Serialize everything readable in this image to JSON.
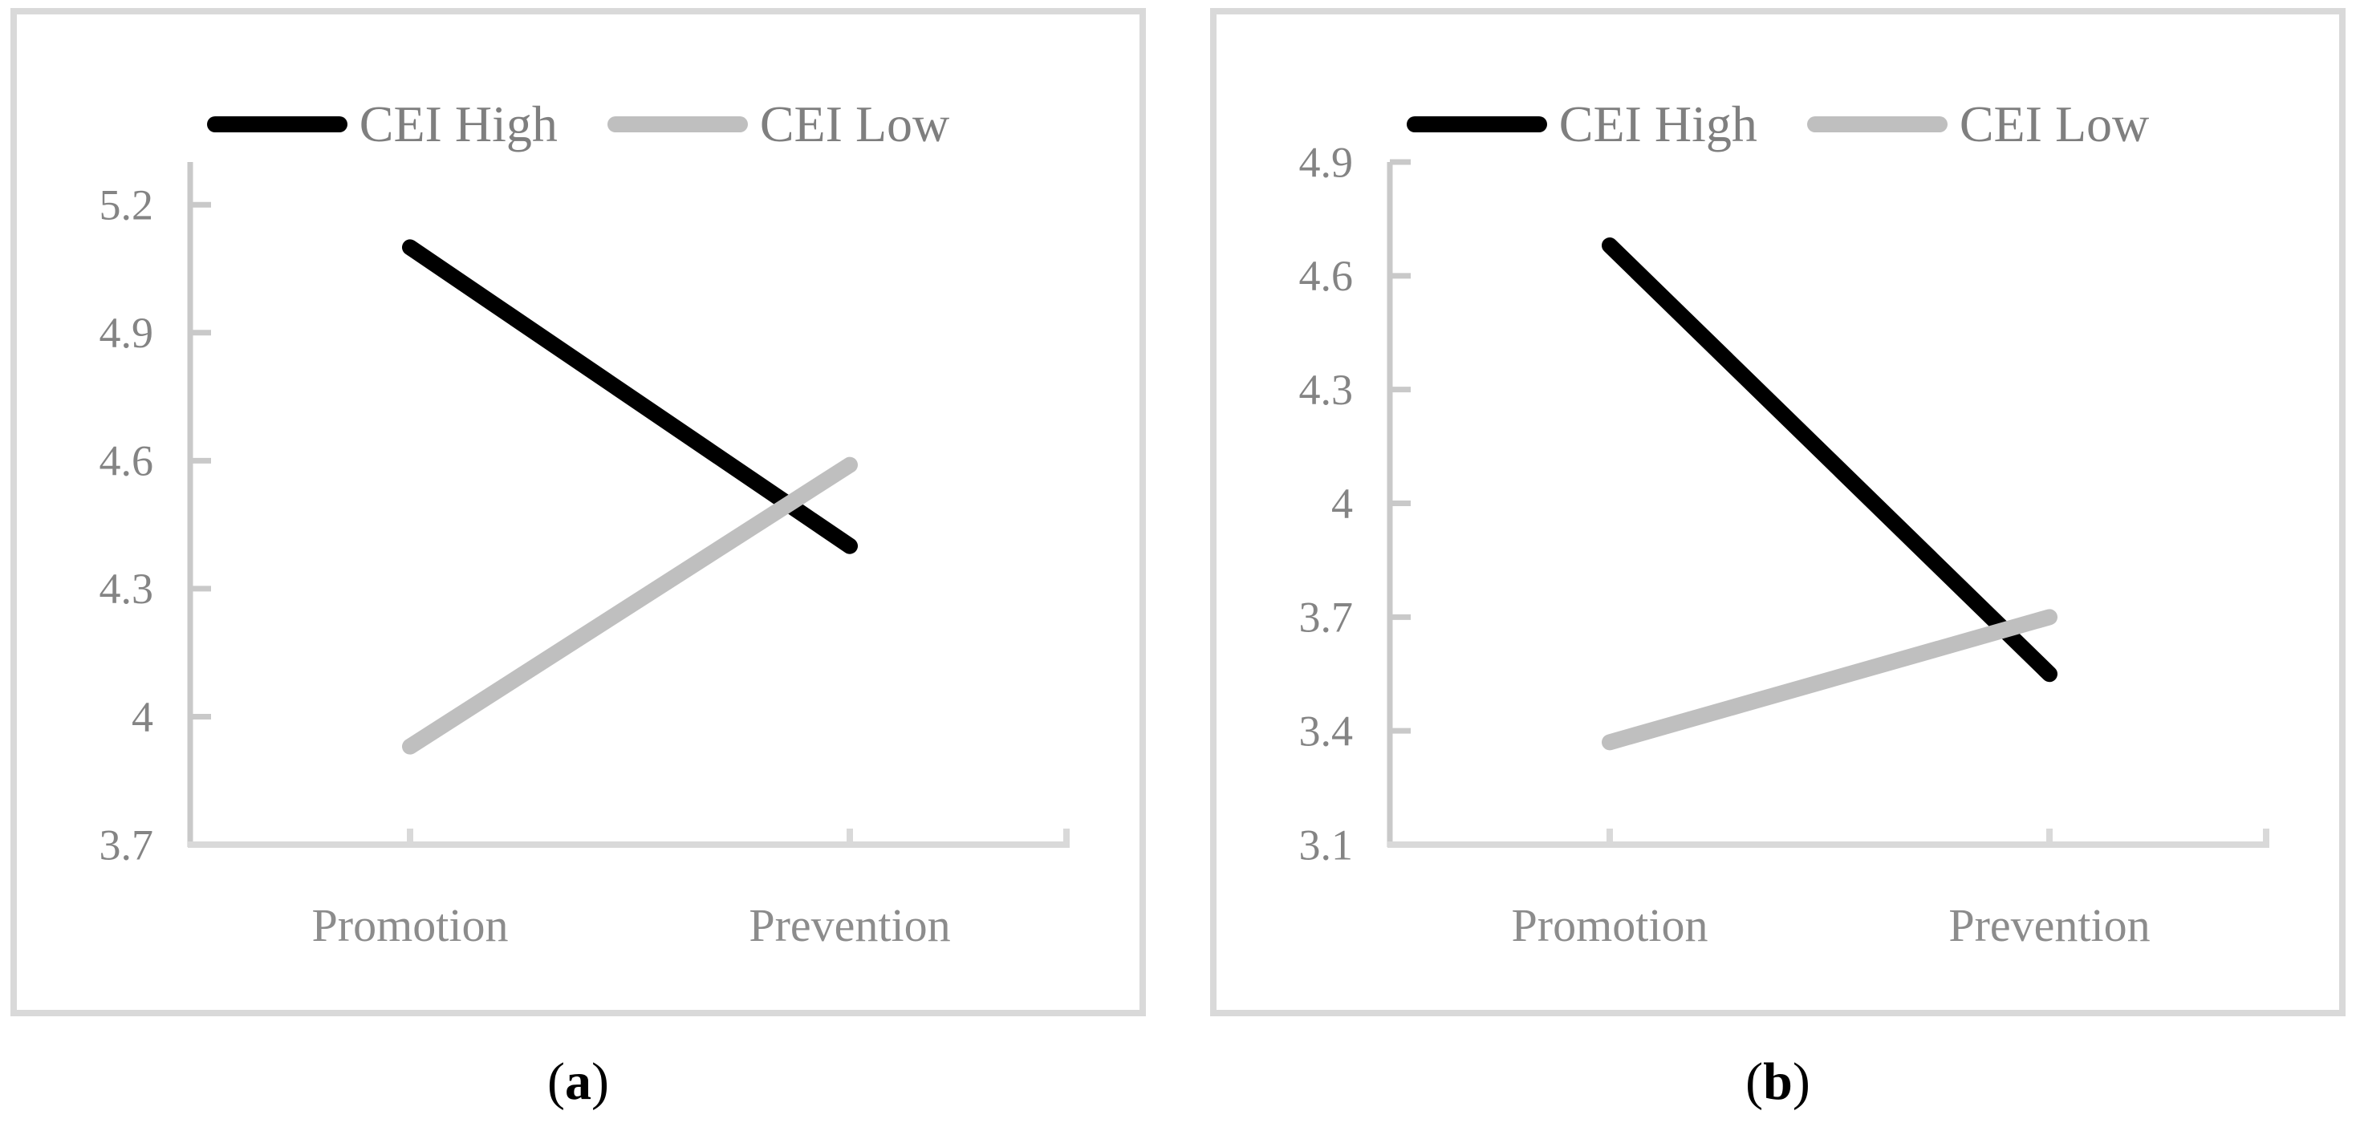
{
  "figure": {
    "style": {
      "panel_border_color": "#D9D9D9",
      "y_axis_color": "#C9C9C9",
      "x_axis_color": "#D9D9D9",
      "tick_label_color": "#848484",
      "category_label_color": "#8C8C8C",
      "legend_text_color": "#7F7F7F",
      "background": "#FFFFFF"
    },
    "captions": [
      {
        "open": "(",
        "letter": "a",
        "close": ")"
      },
      {
        "open": "(",
        "letter": "b",
        "close": ")"
      }
    ]
  },
  "chart_data": [
    {
      "type": "line",
      "title": "",
      "xlabel": "",
      "ylabel": "",
      "grid": false,
      "legend_position": "top",
      "categories": [
        "Promotion",
        "Prevention"
      ],
      "series": [
        {
          "name": "CEI High",
          "color": "#000000",
          "values": [
            5.1,
            4.4
          ]
        },
        {
          "name": "CEI Low",
          "color": "#BFBFBF",
          "values": [
            3.93,
            4.59
          ]
        }
      ],
      "ylim": [
        3.7,
        5.3
      ],
      "yticks": [
        {
          "v": 3.7,
          "label": "3.7"
        },
        {
          "v": 4.0,
          "label": "4"
        },
        {
          "v": 4.3,
          "label": "4.3"
        },
        {
          "v": 4.6,
          "label": "4.6"
        },
        {
          "v": 4.9,
          "label": "4.9"
        },
        {
          "v": 5.2,
          "label": "5.2"
        }
      ]
    },
    {
      "type": "line",
      "title": "",
      "xlabel": "",
      "ylabel": "",
      "grid": false,
      "legend_position": "top",
      "categories": [
        "Promotion",
        "Prevention"
      ],
      "series": [
        {
          "name": "CEI High",
          "color": "#000000",
          "values": [
            4.68,
            3.55
          ]
        },
        {
          "name": "CEI Low",
          "color": "#BFBFBF",
          "values": [
            3.37,
            3.7
          ]
        }
      ],
      "ylim": [
        3.1,
        4.9
      ],
      "yticks": [
        {
          "v": 3.1,
          "label": "3.1"
        },
        {
          "v": 3.4,
          "label": "3.4"
        },
        {
          "v": 3.7,
          "label": "3.7"
        },
        {
          "v": 4.0,
          "label": "4"
        },
        {
          "v": 4.3,
          "label": "4.3"
        },
        {
          "v": 4.6,
          "label": "4.6"
        },
        {
          "v": 4.9,
          "label": "4.9"
        }
      ]
    }
  ]
}
